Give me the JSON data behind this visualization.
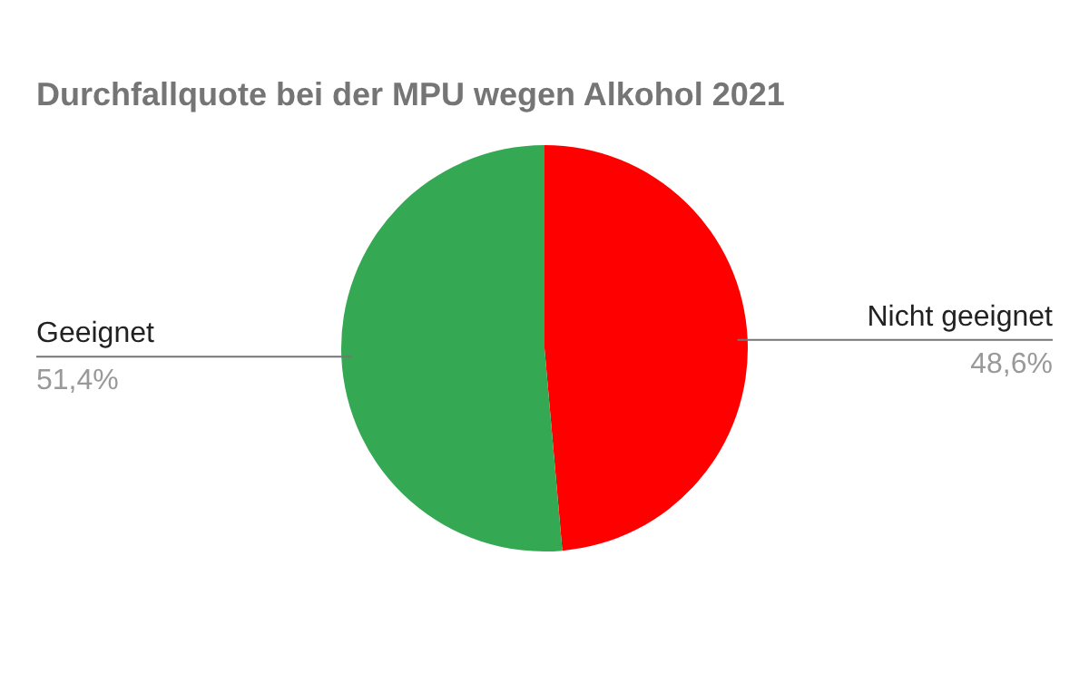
{
  "chart_data": {
    "type": "pie",
    "title": "Durchfallquote bei der MPU wegen Alkohol 2021",
    "categories": [
      "Nicht geeignet",
      "Geeignet"
    ],
    "values": [
      48.6,
      51.4
    ],
    "colors": [
      "#ff0000",
      "#34a853"
    ],
    "value_labels": [
      "48,6%",
      "51,4%"
    ]
  }
}
